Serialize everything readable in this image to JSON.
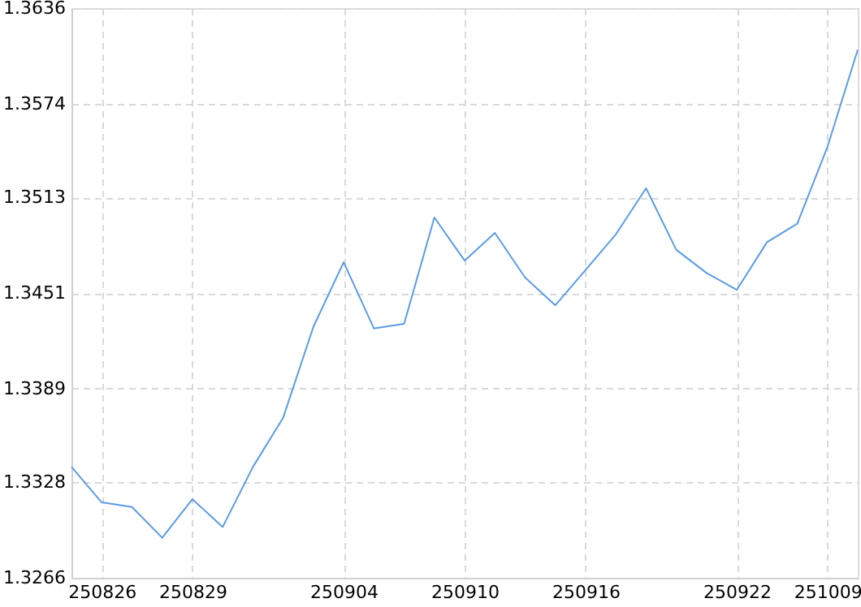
{
  "chart_data": {
    "type": "line",
    "categories": [
      null,
      "250826",
      null,
      null,
      "250829",
      null,
      null,
      null,
      null,
      "250904",
      null,
      null,
      null,
      "250910",
      null,
      null,
      null,
      "250916",
      null,
      null,
      null,
      null,
      "250922",
      null,
      null,
      "251009",
      null
    ],
    "series": [
      {
        "color": "#5b9be8",
        "values": [
          1.3338,
          1.3315,
          1.3312,
          1.3292,
          1.3317,
          1.3299,
          1.3338,
          1.337,
          1.3429,
          1.3471,
          1.3428,
          1.3431,
          1.35,
          1.3472,
          1.349,
          1.3461,
          1.3443,
          1.3466,
          1.3489,
          1.3519,
          1.3479,
          1.3464,
          1.3453,
          1.3484,
          1.3496,
          1.3546,
          1.3609
        ]
      }
    ],
    "ylim": [
      1.3266,
      1.3636
    ],
    "yticks": [
      1.3266,
      1.3328,
      1.3389,
      1.3451,
      1.3513,
      1.3574,
      1.3636
    ],
    "grid": true,
    "marker": "none",
    "line_style": "solid"
  }
}
